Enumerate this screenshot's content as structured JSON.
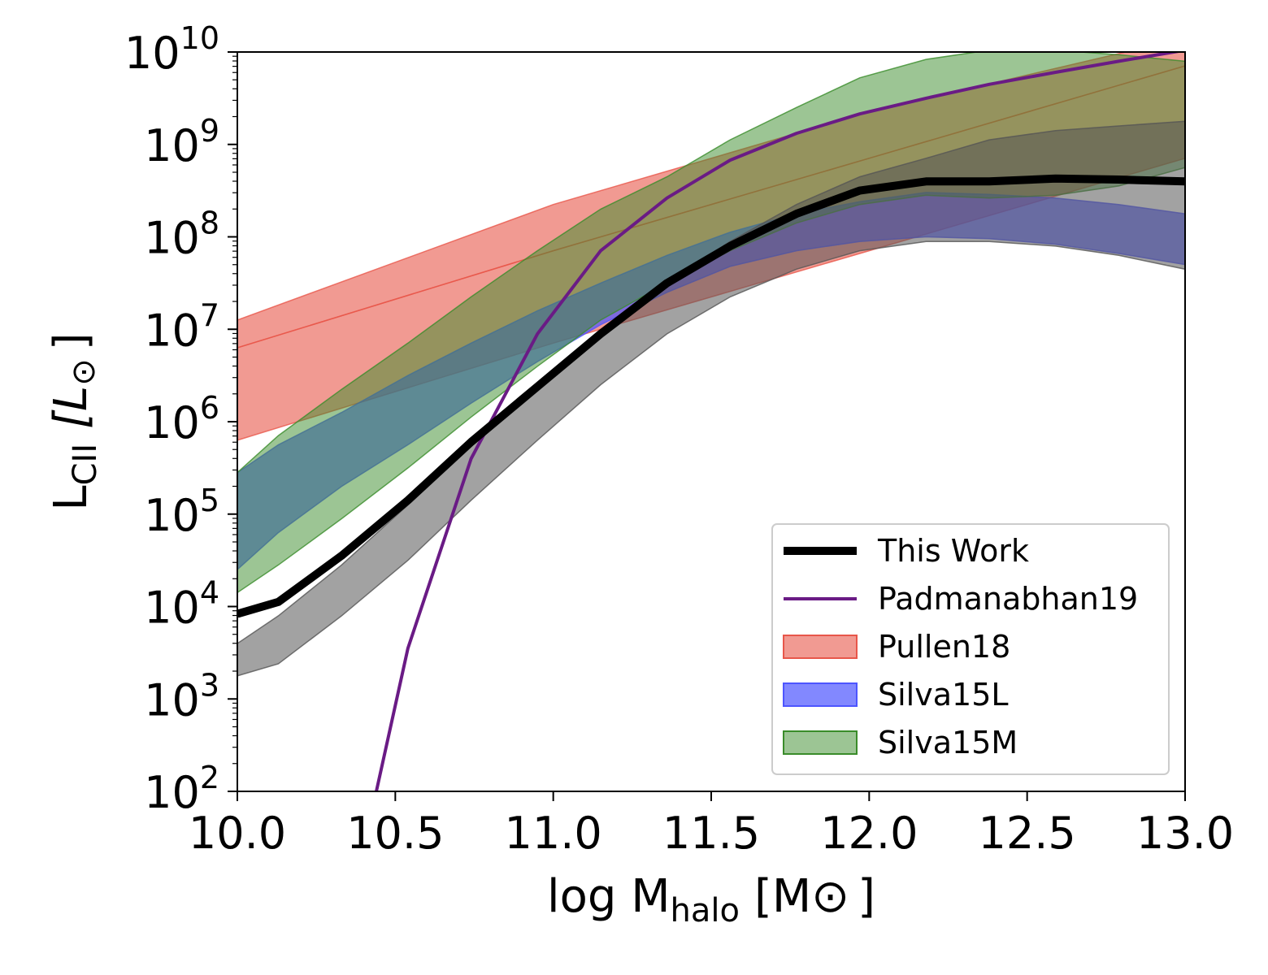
{
  "chart_data": {
    "type": "area",
    "xlabel": {
      "main": "log M",
      "sub": "halo",
      "unit": "[M",
      "unit_end": "]"
    },
    "ylabel": {
      "main": "L",
      "sub": "CII",
      "unit": "[L",
      "unit_end": "]"
    },
    "xlim": [
      10.0,
      13.0
    ],
    "ylim_log10": [
      2,
      10
    ],
    "yscale": "log",
    "xticks": [
      10.0,
      10.5,
      11.0,
      11.5,
      12.0,
      12.5,
      13.0
    ],
    "xtick_labels": [
      "10.0",
      "10.5",
      "11.0",
      "11.5",
      "12.0",
      "12.5",
      "13.0"
    ],
    "yticks_log10": [
      2,
      3,
      4,
      5,
      6,
      7,
      8,
      9,
      10
    ],
    "ytick_labels": [
      {
        "base": "10",
        "exp": "2"
      },
      {
        "base": "10",
        "exp": "3"
      },
      {
        "base": "10",
        "exp": "4"
      },
      {
        "base": "10",
        "exp": "5"
      },
      {
        "base": "10",
        "exp": "6"
      },
      {
        "base": "10",
        "exp": "7"
      },
      {
        "base": "10",
        "exp": "8"
      },
      {
        "base": "10",
        "exp": "9"
      },
      {
        "base": "10",
        "exp": "10"
      }
    ],
    "legend_position": "lower-right",
    "bands": [
      {
        "name": "Pullen18",
        "color": "#e8564a",
        "opacity": 0.6,
        "x": [
          10.0,
          11.0,
          12.0,
          13.0
        ],
        "lower": [
          6.8,
          7.85,
          8.85,
          9.85
        ],
        "upper": [
          7.1,
          8.35,
          9.35,
          10.15
        ]
      },
      {
        "name": "Pullen18",
        "color": "#e8564a",
        "opacity": 0.6,
        "x": [
          10.0,
          11.0,
          12.0,
          13.0
        ],
        "lower": [
          5.8,
          6.85,
          7.85,
          8.85
        ],
        "upper": [
          6.8,
          7.85,
          8.85,
          9.85
        ]
      },
      {
        "name": "Silva15L",
        "color": "#4d55ff",
        "opacity": 0.7,
        "x": [
          10.0,
          10.13,
          10.33,
          10.54,
          10.74,
          10.95,
          11.15,
          11.36,
          11.56,
          11.77,
          11.97,
          12.18,
          12.38,
          12.59,
          12.79,
          13.0
        ],
        "lower": [
          4.4,
          4.8,
          5.3,
          5.75,
          6.2,
          6.65,
          7.05,
          7.4,
          7.68,
          7.85,
          7.95,
          8.0,
          7.98,
          7.92,
          7.82,
          7.7
        ],
        "upper": [
          5.45,
          5.75,
          6.1,
          6.5,
          6.85,
          7.2,
          7.5,
          7.8,
          8.05,
          8.25,
          8.38,
          8.48,
          8.46,
          8.42,
          8.35,
          8.25
        ]
      },
      {
        "name": "Silva15M",
        "color": "#3a8c2a",
        "opacity": 0.5,
        "x": [
          10.0,
          10.13,
          10.33,
          10.54,
          10.74,
          10.95,
          11.15,
          11.36,
          11.56,
          11.77,
          11.97,
          12.18,
          12.38,
          12.59,
          12.79,
          13.0
        ],
        "lower": [
          4.15,
          4.45,
          4.95,
          5.5,
          6.05,
          6.6,
          7.1,
          7.5,
          7.85,
          8.15,
          8.35,
          8.45,
          8.42,
          8.45,
          8.55,
          8.75
        ],
        "upper": [
          5.45,
          5.85,
          6.35,
          6.85,
          7.35,
          7.85,
          8.3,
          8.65,
          9.05,
          9.4,
          9.72,
          9.92,
          10.02,
          10.02,
          9.97,
          9.9
        ]
      },
      {
        "name": "This Work range",
        "color": "#555555",
        "opacity": 0.55,
        "x": [
          10.0,
          10.13,
          10.33,
          10.54,
          10.74,
          10.95,
          11.15,
          11.36,
          11.56,
          11.77,
          11.97,
          12.18,
          12.38,
          12.59,
          12.79,
          13.0
        ],
        "lower": [
          3.25,
          3.38,
          3.9,
          4.5,
          5.15,
          5.8,
          6.4,
          6.95,
          7.35,
          7.65,
          7.85,
          7.95,
          7.95,
          7.9,
          7.8,
          7.65
        ],
        "upper": [
          3.6,
          3.9,
          4.45,
          5.1,
          5.75,
          6.4,
          6.95,
          7.5,
          7.95,
          8.35,
          8.65,
          8.85,
          9.05,
          9.15,
          9.2,
          9.25
        ]
      }
    ],
    "series": [
      {
        "name": "This Work",
        "color": "#000000",
        "width": 10,
        "x": [
          10.0,
          10.13,
          10.33,
          10.54,
          10.74,
          10.95,
          11.15,
          11.36,
          11.56,
          11.77,
          11.97,
          12.18,
          12.38,
          12.59,
          12.79,
          13.0
        ],
        "y_log10": [
          3.92,
          4.05,
          4.55,
          5.15,
          5.78,
          6.38,
          6.95,
          7.5,
          7.9,
          8.25,
          8.5,
          8.6,
          8.6,
          8.63,
          8.62,
          8.6
        ]
      },
      {
        "name": "Padmanabhan19",
        "color": "#6a1b85",
        "width": 4,
        "x": [
          10.44,
          10.54,
          10.74,
          10.95,
          11.15,
          11.36,
          11.56,
          11.77,
          11.97,
          12.18,
          12.38,
          12.59,
          12.79,
          13.0
        ],
        "y_log10": [
          2.0,
          3.55,
          5.6,
          6.95,
          7.85,
          8.42,
          8.83,
          9.12,
          9.33,
          9.5,
          9.65,
          9.78,
          9.9,
          10.02
        ]
      }
    ],
    "legend": [
      {
        "label": "This Work",
        "kind": "line",
        "color": "#000000",
        "width": 10
      },
      {
        "label": "Padmanabhan19",
        "kind": "line",
        "color": "#6a1b85",
        "width": 4
      },
      {
        "label": "Pullen18",
        "kind": "patch",
        "color": "#e8564a",
        "opacity": 0.6
      },
      {
        "label": "Silva15L",
        "kind": "patch",
        "color": "#4d55ff",
        "opacity": 0.7
      },
      {
        "label": "Silva15M",
        "kind": "patch",
        "color": "#3a8c2a",
        "opacity": 0.5
      }
    ]
  }
}
